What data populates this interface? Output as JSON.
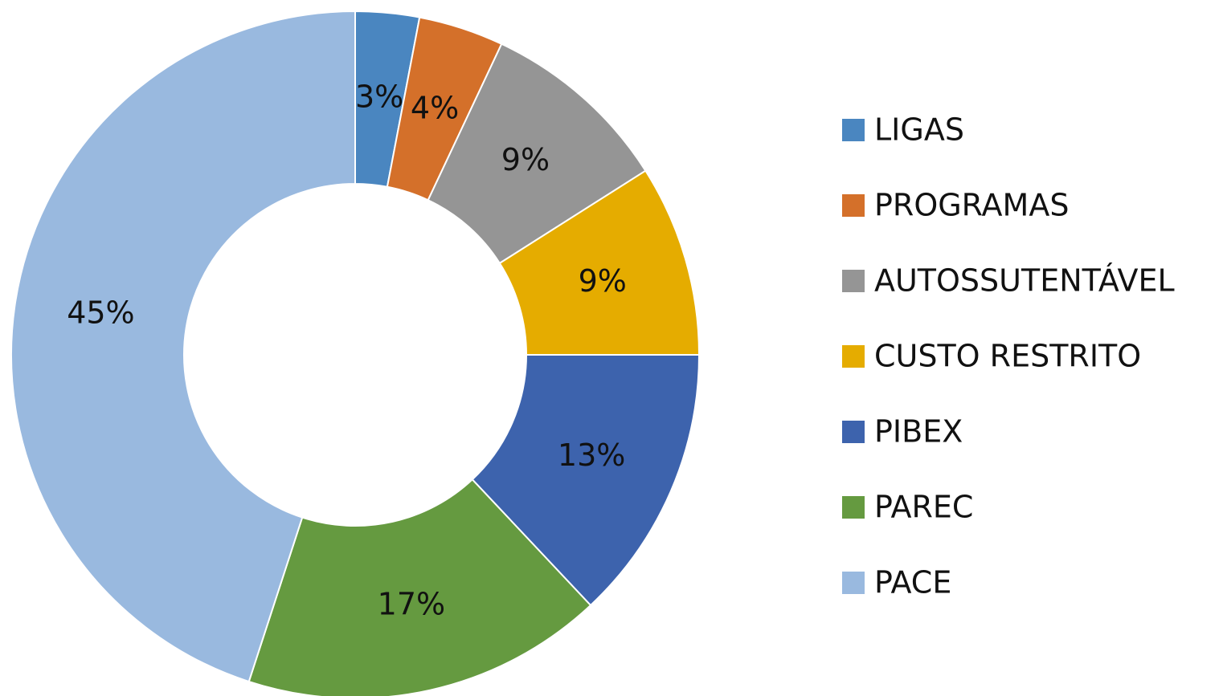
{
  "chart_data": {
    "type": "donut",
    "categories": [
      "LIGAS",
      "PROGRAMAS",
      "AUTOSSUTENTÁVEL",
      "CUSTO RESTRITO",
      "PIBEX",
      "PAREC",
      "PACE"
    ],
    "values": [
      3,
      4,
      9,
      9,
      13,
      17,
      45
    ],
    "value_labels": [
      "3%",
      "4%",
      "9%",
      "9%",
      "13%",
      "17%",
      "45%"
    ],
    "colors": [
      "#4a86c0",
      "#d4702a",
      "#959595",
      "#e5ac00",
      "#3d63ad",
      "#659a40",
      "#99b9df"
    ],
    "legend": "right"
  }
}
